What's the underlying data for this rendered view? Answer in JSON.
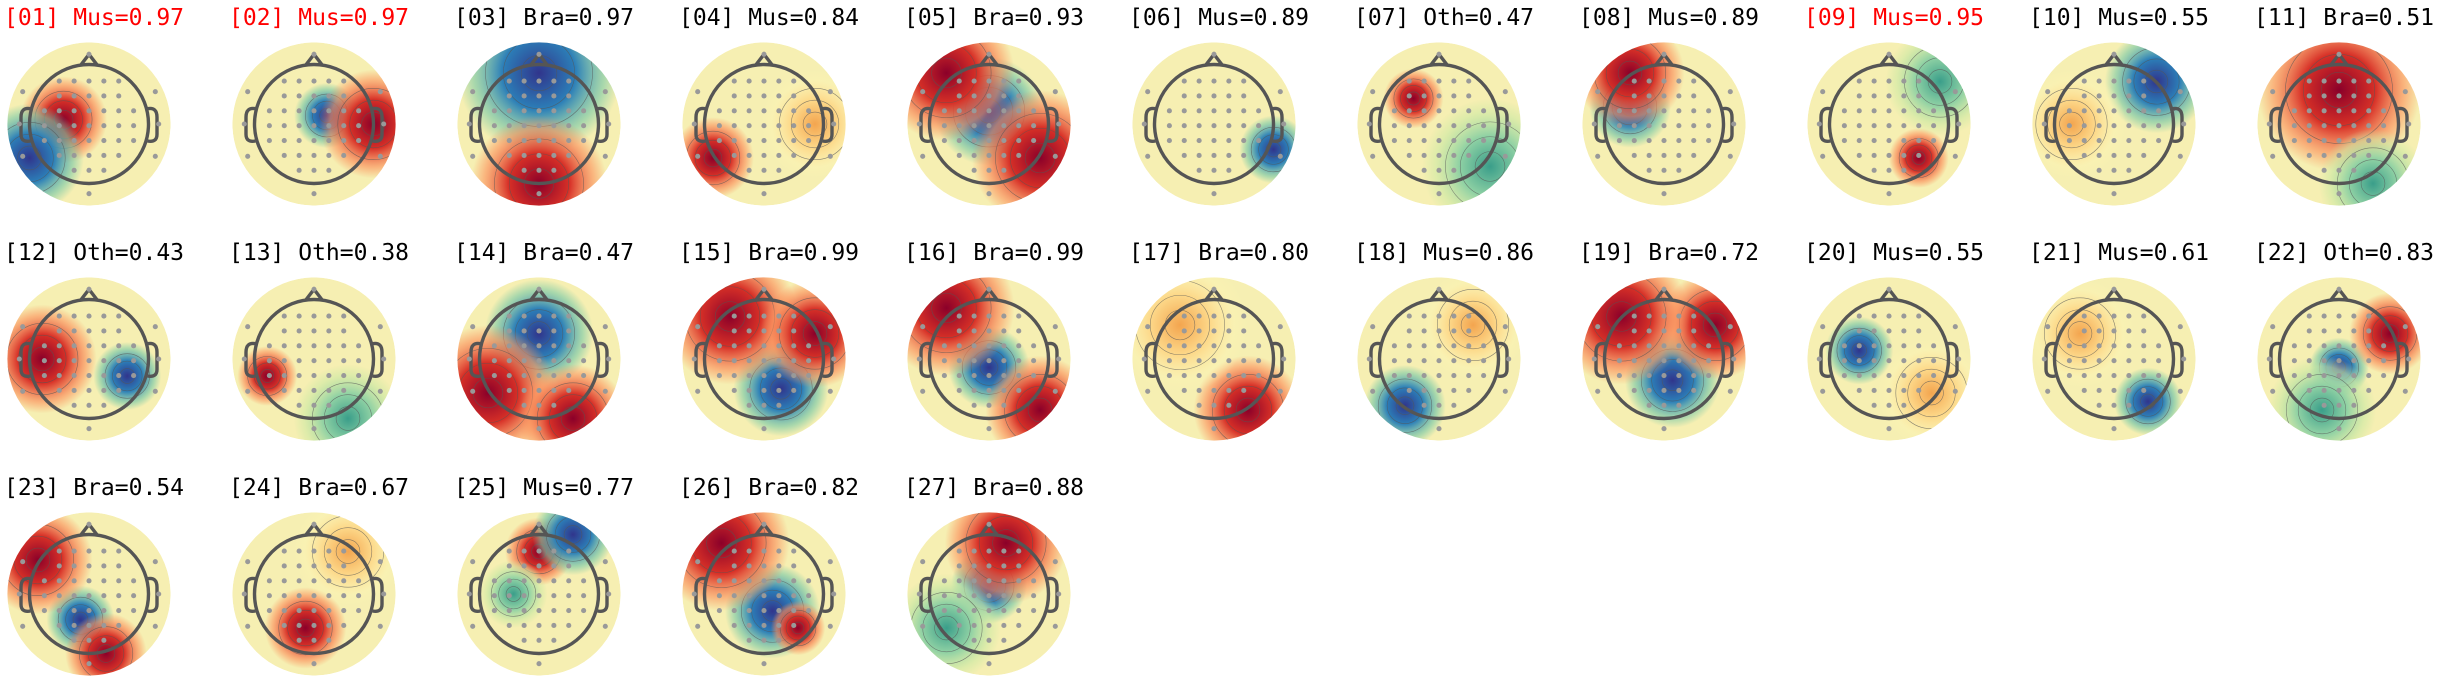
{
  "colors": {
    "flagged": "#ff0000",
    "normal": "#000000"
  },
  "components": [
    {
      "label": "[01] Mus=0.97",
      "flagged": true
    },
    {
      "label": "[02] Mus=0.97",
      "flagged": true
    },
    {
      "label": "[03] Bra=0.97",
      "flagged": false
    },
    {
      "label": "[04] Mus=0.84",
      "flagged": false
    },
    {
      "label": "[05] Bra=0.93",
      "flagged": false
    },
    {
      "label": "[06] Mus=0.89",
      "flagged": false
    },
    {
      "label": "[07] Oth=0.47",
      "flagged": false
    },
    {
      "label": "[08] Mus=0.89",
      "flagged": false
    },
    {
      "label": "[09] Mus=0.95",
      "flagged": true
    },
    {
      "label": "[10] Mus=0.55",
      "flagged": false
    },
    {
      "label": "[11] Bra=0.51",
      "flagged": false
    },
    {
      "label": "[12] Oth=0.43",
      "flagged": false
    },
    {
      "label": "[13] Oth=0.38",
      "flagged": false
    },
    {
      "label": "[14] Bra=0.47",
      "flagged": false
    },
    {
      "label": "[15] Bra=0.99",
      "flagged": false
    },
    {
      "label": "[16] Bra=0.99",
      "flagged": false
    },
    {
      "label": "[17] Bra=0.80",
      "flagged": false
    },
    {
      "label": "[18] Mus=0.86",
      "flagged": false
    },
    {
      "label": "[19] Bra=0.72",
      "flagged": false
    },
    {
      "label": "[20] Mus=0.55",
      "flagged": false
    },
    {
      "label": "[21] Mus=0.61",
      "flagged": false
    },
    {
      "label": "[22] Oth=0.83",
      "flagged": false
    },
    {
      "label": "[23] Bra=0.54",
      "flagged": false
    },
    {
      "label": "[24] Bra=0.67",
      "flagged": false
    },
    {
      "label": "[25] Mus=0.77",
      "flagged": false
    },
    {
      "label": "[26] Bra=0.82",
      "flagged": false
    },
    {
      "label": "[27] Bra=0.88",
      "flagged": false
    }
  ]
}
